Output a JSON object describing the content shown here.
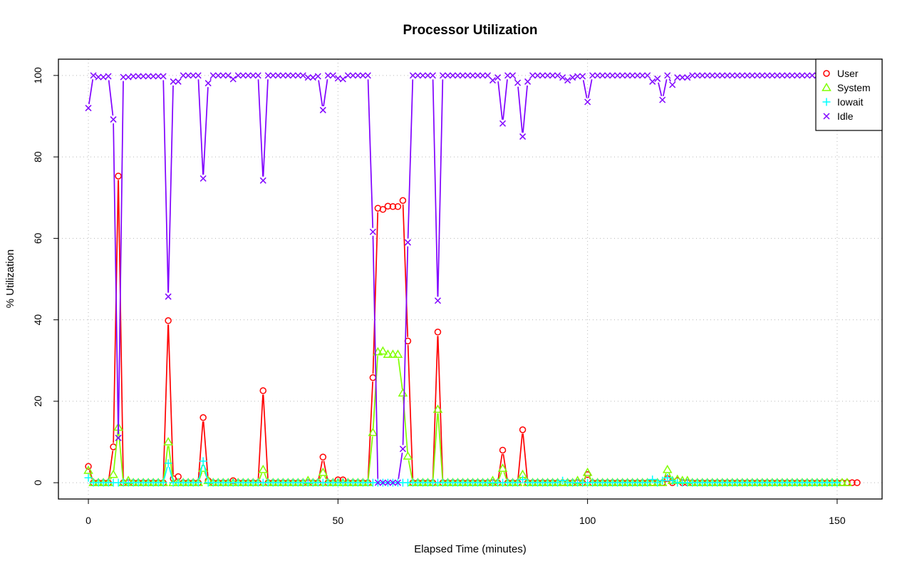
{
  "chart_data": {
    "type": "line",
    "title": "Processor Utilization",
    "xlabel": "Elapsed Time (minutes)",
    "ylabel": "% Utilization",
    "xlim": [
      -6,
      159
    ],
    "ylim": [
      -4,
      104
    ],
    "xticks": [
      0,
      50,
      100,
      150
    ],
    "yticks": [
      0,
      20,
      40,
      60,
      80,
      100
    ],
    "grid": true,
    "legend_position": "top-right",
    "series": [
      {
        "name": "User",
        "color": "#ff0000",
        "marker": "circle",
        "values": [
          4,
          0,
          0,
          0,
          0,
          8.8,
          75.3,
          0,
          0,
          0,
          0,
          0,
          0,
          0,
          0,
          0,
          39.8,
          1,
          1.5,
          0,
          0,
          0,
          0,
          16,
          0.5,
          0,
          0,
          0,
          0,
          0.5,
          0,
          0,
          0,
          0,
          0,
          22.6,
          0,
          0,
          0,
          0,
          0,
          0,
          0,
          0,
          0,
          0,
          0,
          6.3,
          0,
          0,
          0.7,
          0.7,
          0,
          0,
          0,
          0,
          0,
          25.8,
          67.4,
          67.1,
          67.9,
          67.8,
          67.8,
          69.3,
          34.8,
          0,
          0,
          0,
          0,
          0,
          37,
          0,
          0,
          0,
          0,
          0,
          0,
          0,
          0,
          0,
          0,
          0,
          0,
          8,
          0,
          0,
          0,
          13,
          0,
          0,
          0,
          0,
          0,
          0,
          0,
          0,
          0,
          0,
          0,
          0,
          2,
          0,
          0,
          0,
          0,
          0,
          0,
          0,
          0,
          0,
          0,
          0,
          0,
          0,
          0,
          0,
          1,
          0,
          0.5,
          0,
          0,
          0,
          0,
          0,
          0,
          0,
          0,
          0,
          0,
          0,
          0,
          0,
          0,
          0,
          0,
          0,
          0,
          0,
          0,
          0,
          0,
          0,
          0,
          0,
          0,
          0,
          0,
          0,
          0,
          0,
          0,
          0,
          0,
          0,
          0
        ]
      },
      {
        "name": "System",
        "color": "#80ff00",
        "marker": "triangle",
        "values": [
          3,
          0,
          0,
          0,
          0,
          2,
          13.6,
          0,
          0.5,
          0,
          0,
          0,
          0,
          0,
          0,
          0,
          10,
          0,
          0,
          0,
          0,
          0,
          0,
          3.5,
          0.5,
          0,
          0,
          0,
          0,
          0,
          0,
          0,
          0,
          0,
          0,
          3.2,
          0,
          0,
          0,
          0,
          0,
          0,
          0,
          0,
          0.5,
          0,
          0,
          2.5,
          0,
          0,
          0,
          0,
          0,
          0,
          0,
          0,
          0,
          12.3,
          32.1,
          32.3,
          31.5,
          31.5,
          31.5,
          22,
          6.5,
          0,
          0,
          0,
          0,
          0,
          18,
          0,
          0,
          0,
          0,
          0,
          0,
          0,
          0,
          0,
          0,
          0.5,
          0,
          3.5,
          0,
          0,
          0,
          2,
          0,
          0,
          0,
          0,
          0,
          0,
          0,
          0,
          0,
          0,
          0.5,
          0,
          2.5,
          0,
          0,
          0,
          0,
          0,
          0,
          0,
          0,
          0,
          0,
          0,
          0,
          0,
          0,
          0,
          3.2,
          0.5,
          0.8,
          0.5,
          0.5,
          0,
          0,
          0,
          0,
          0,
          0,
          0,
          0,
          0,
          0,
          0,
          0,
          0,
          0,
          0,
          0,
          0,
          0,
          0,
          0,
          0,
          0,
          0,
          0,
          0,
          0,
          0,
          0,
          0,
          0,
          0,
          0
        ]
      },
      {
        "name": "Iowait",
        "color": "#00ffff",
        "marker": "plus",
        "values": [
          1.2,
          0,
          0,
          0,
          0,
          0,
          0,
          0,
          0,
          0,
          0,
          0,
          0,
          0,
          0,
          0,
          4.8,
          0,
          0,
          0,
          0,
          0,
          0,
          5.3,
          0,
          0,
          0,
          0,
          0,
          0,
          0,
          0,
          0,
          0,
          0,
          0,
          0,
          0,
          0,
          0,
          0,
          0,
          0,
          0,
          0,
          0,
          0,
          0,
          0,
          0,
          0,
          0,
          0,
          0,
          0,
          0,
          0,
          0,
          0,
          0,
          0,
          0,
          0,
          0,
          0,
          0,
          0,
          0,
          0,
          0,
          0,
          0,
          0,
          0,
          0,
          0,
          0,
          0,
          0,
          0,
          0,
          0,
          0,
          0,
          0,
          0,
          0,
          0.8,
          0,
          0,
          0,
          0,
          0,
          0,
          0,
          0.5,
          0,
          0,
          0,
          0,
          0,
          0,
          0,
          0,
          0,
          0,
          0,
          0,
          0,
          0,
          0,
          0,
          0,
          0.8,
          0,
          0.5,
          1.2,
          0.5,
          0,
          0,
          0,
          0,
          0,
          0,
          0,
          0,
          0,
          0,
          0,
          0,
          0,
          0,
          0,
          0,
          0,
          0,
          0,
          0,
          0,
          0,
          0,
          0,
          0,
          0,
          0,
          0,
          0,
          0,
          0,
          0,
          0
        ]
      },
      {
        "name": "Idle",
        "color": "#8000ff",
        "marker": "x",
        "values": [
          92,
          100,
          99.6,
          99.6,
          99.8,
          89.2,
          11,
          99.6,
          99.6,
          99.8,
          99.8,
          99.8,
          99.8,
          99.8,
          99.8,
          99.8,
          45.7,
          98.5,
          98.5,
          100,
          100,
          100,
          100,
          74.7,
          98.1,
          100,
          100,
          100,
          100,
          99.1,
          100,
          100,
          100,
          100,
          100,
          74.2,
          100,
          100,
          100,
          100,
          100,
          100,
          100,
          100,
          99.5,
          99.5,
          99.8,
          91.5,
          100,
          100,
          99.3,
          99.1,
          100,
          100,
          100,
          100,
          100,
          61.6,
          0,
          0,
          0,
          0,
          0,
          8.3,
          59,
          100,
          100,
          100,
          100,
          100,
          44.7,
          100,
          100,
          100,
          100,
          100,
          100,
          100,
          100,
          100,
          100,
          98.8,
          99.5,
          88.2,
          100,
          100,
          98.2,
          85,
          98.5,
          100,
          100,
          100,
          100,
          100,
          100,
          99.5,
          98.8,
          99.5,
          99.8,
          99.8,
          93.5,
          100,
          100,
          100,
          100,
          100,
          100,
          100,
          100,
          100,
          100,
          100,
          100,
          98.5,
          99.2,
          94,
          100,
          97.7,
          99.5,
          99.5,
          99.5,
          100,
          100,
          100,
          100,
          100,
          100,
          100,
          100,
          100,
          100,
          100,
          100,
          100,
          100,
          100,
          100,
          100,
          100,
          100,
          100,
          100,
          100,
          100,
          100,
          100,
          100,
          100,
          100,
          100,
          100,
          100,
          100
        ]
      }
    ]
  }
}
